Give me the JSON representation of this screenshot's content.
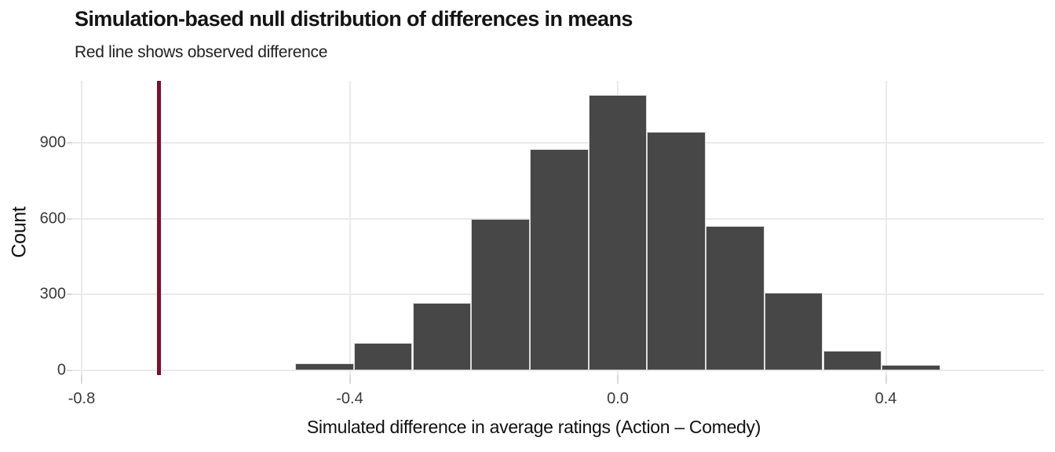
{
  "chart_data": {
    "type": "bar",
    "subtype": "histogram",
    "title": "Simulation-based null distribution of differences in means",
    "subtitle": "Red line shows observed difference",
    "xlabel": "Simulated difference in average ratings (Action – Comedy)",
    "ylabel": "Count",
    "bin_width": 0.0875,
    "bin_centers": [
      -0.4375,
      -0.35,
      -0.2625,
      -0.175,
      -0.0875,
      0,
      0.0875,
      0.175,
      0.2625,
      0.35,
      0.4375
    ],
    "counts": [
      28,
      110,
      268,
      600,
      878,
      1092,
      946,
      572,
      308,
      78,
      22
    ],
    "observed_difference": -0.685,
    "annotation": "red vertical line marks observed difference",
    "x_tick_values": [
      -0.8,
      -0.4,
      0,
      0.4
    ],
    "x_tick_labels": [
      "-0.8",
      "-0.4",
      "0.0",
      "0.4"
    ],
    "y_tick_values": [
      0,
      300,
      600,
      900
    ],
    "y_tick_labels": [
      "0",
      "300",
      "600",
      "900"
    ],
    "xlim": [
      -0.815,
      0.637
    ],
    "ylim": [
      0,
      1147
    ],
    "grid": true,
    "legend": false,
    "colors": {
      "bar_fill": "#474747",
      "bar_border": "#dcdcdc",
      "observed_line": "#7c0f2f",
      "gridline": "#eaeaea",
      "tick_mark": "#d9d9d9",
      "axis_text": "#3a3a3a",
      "title_text": "#141414"
    }
  }
}
